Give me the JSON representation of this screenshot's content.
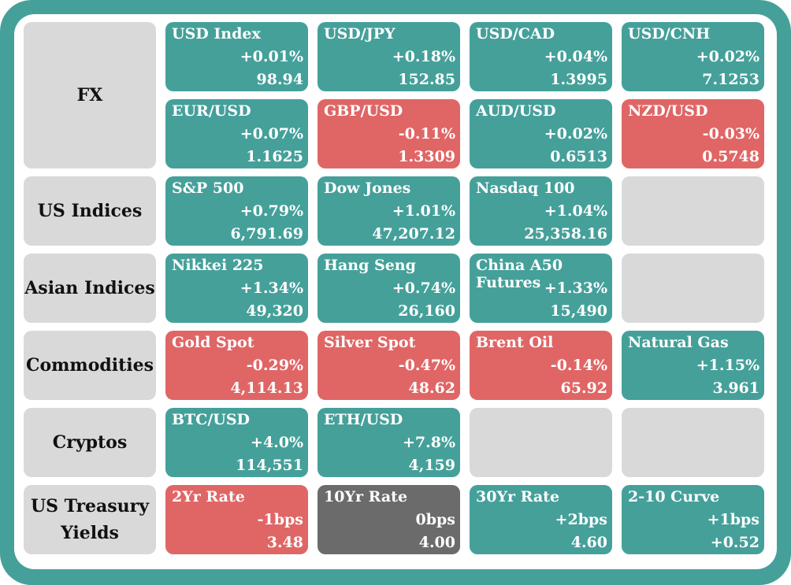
{
  "colors": {
    "up": "#45a09a",
    "down": "#e06666",
    "flat": "#6b6b6b",
    "empty": "#d9d9d9",
    "frame": "#45a09a"
  },
  "sections": [
    {
      "label": "FX",
      "tiles": [
        {
          "name": "USD Index",
          "change": "+0.01%",
          "value": "98.94",
          "trend": "up"
        },
        {
          "name": "USD/JPY",
          "change": "+0.18%",
          "value": "152.85",
          "trend": "up"
        },
        {
          "name": "USD/CAD",
          "change": "+0.04%",
          "value": "1.3995",
          "trend": "up"
        },
        {
          "name": "USD/CNH",
          "change": "+0.02%",
          "value": "7.1253",
          "trend": "up"
        },
        {
          "name": "EUR/USD",
          "change": "+0.07%",
          "value": "1.1625",
          "trend": "up"
        },
        {
          "name": "GBP/USD",
          "change": "-0.11%",
          "value": "1.3309",
          "trend": "down"
        },
        {
          "name": "AUD/USD",
          "change": "+0.02%",
          "value": "0.6513",
          "trend": "up"
        },
        {
          "name": "NZD/USD",
          "change": "-0.03%",
          "value": "0.5748",
          "trend": "down"
        }
      ]
    },
    {
      "label": "US Indices",
      "tiles": [
        {
          "name": "S&P 500",
          "change": "+0.79%",
          "value": "6,791.69",
          "trend": "up"
        },
        {
          "name": "Dow Jones",
          "change": "+1.01%",
          "value": "47,207.12",
          "trend": "up"
        },
        {
          "name": "Nasdaq 100",
          "change": "+1.04%",
          "value": "25,358.16",
          "trend": "up"
        },
        {
          "empty": true
        }
      ]
    },
    {
      "label": "Asian Indices",
      "tiles": [
        {
          "name": "Nikkei 225",
          "change": "+1.34%",
          "value": "49,320",
          "trend": "up"
        },
        {
          "name": "Hang Seng",
          "change": "+0.74%",
          "value": "26,160",
          "trend": "up"
        },
        {
          "name": "China A50 Futures",
          "change": "+1.33%",
          "value": "15,490",
          "trend": "up"
        },
        {
          "empty": true
        }
      ]
    },
    {
      "label": "Commodities",
      "tiles": [
        {
          "name": "Gold Spot",
          "change": "-0.29%",
          "value": "4,114.13",
          "trend": "down"
        },
        {
          "name": "Silver Spot",
          "change": "-0.47%",
          "value": "48.62",
          "trend": "down"
        },
        {
          "name": "Brent Oil",
          "change": "-0.14%",
          "value": "65.92",
          "trend": "down"
        },
        {
          "name": "Natural Gas",
          "change": "+1.15%",
          "value": "3.961",
          "trend": "up"
        }
      ]
    },
    {
      "label": "Cryptos",
      "tiles": [
        {
          "name": "BTC/USD",
          "change": "+4.0%",
          "value": "114,551",
          "trend": "up"
        },
        {
          "name": "ETH/USD",
          "change": "+7.8%",
          "value": "4,159",
          "trend": "up"
        },
        {
          "empty": true
        },
        {
          "empty": true
        }
      ]
    },
    {
      "label": "US Treasury Yields",
      "tiles": [
        {
          "name": "2Yr Rate",
          "change": "-1bps",
          "value": "3.48",
          "trend": "down"
        },
        {
          "name": "10Yr Rate",
          "change": "0bps",
          "value": "4.00",
          "trend": "flat"
        },
        {
          "name": "30Yr Rate",
          "change": "+2bps",
          "value": "4.60",
          "trend": "up"
        },
        {
          "name": "2-10 Curve",
          "change": "+1bps",
          "value": "+0.52",
          "trend": "up"
        }
      ]
    }
  ]
}
